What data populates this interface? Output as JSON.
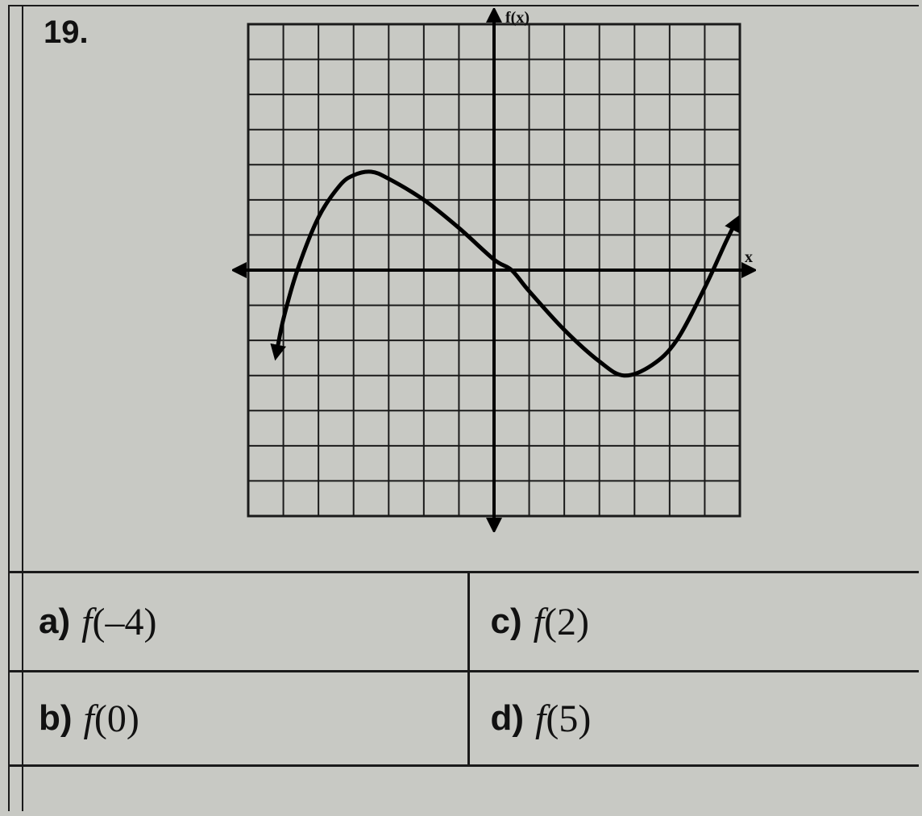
{
  "question_number": "19.",
  "graph": {
    "type": "line",
    "x_axis_label": "x",
    "y_axis_label": "f(x)",
    "xlim": [
      -7,
      7
    ],
    "ylim": [
      -7,
      7
    ],
    "xtick_step": 1,
    "ytick_step": 1,
    "grid_on": true,
    "grid_color": "#1a1a1a",
    "grid_stroke": 2,
    "axis_color": "#000000",
    "axis_stroke": 4,
    "background_color": "#c8c9c4",
    "curve_color": "#000000",
    "curve_stroke": 5,
    "curve_has_arrows": true,
    "points": [
      [
        -6.2,
        -2.4
      ],
      [
        -6.0,
        -1.4
      ],
      [
        -5.6,
        0.0
      ],
      [
        -5.0,
        1.5
      ],
      [
        -4.4,
        2.4
      ],
      [
        -4.0,
        2.7
      ],
      [
        -3.5,
        2.8
      ],
      [
        -3.0,
        2.6
      ],
      [
        -2.0,
        2.0
      ],
      [
        -1.0,
        1.2
      ],
      [
        0.0,
        0.3
      ],
      [
        0.5,
        0.0
      ],
      [
        1.0,
        -0.6
      ],
      [
        2.0,
        -1.7
      ],
      [
        3.0,
        -2.6
      ],
      [
        3.7,
        -3.0
      ],
      [
        4.5,
        -2.7
      ],
      [
        5.2,
        -2.0
      ],
      [
        6.0,
        -0.5
      ],
      [
        6.6,
        0.8
      ],
      [
        6.9,
        1.4
      ]
    ]
  },
  "answers": {
    "a": {
      "letter": "a)",
      "func": "f",
      "arg": "(–4)"
    },
    "b": {
      "letter": "b)",
      "func": "f",
      "arg": "(0)"
    },
    "c": {
      "letter": "c)",
      "func": "f",
      "arg": "(2)"
    },
    "d": {
      "letter": "d)",
      "func": "f",
      "arg": "(5)"
    }
  }
}
